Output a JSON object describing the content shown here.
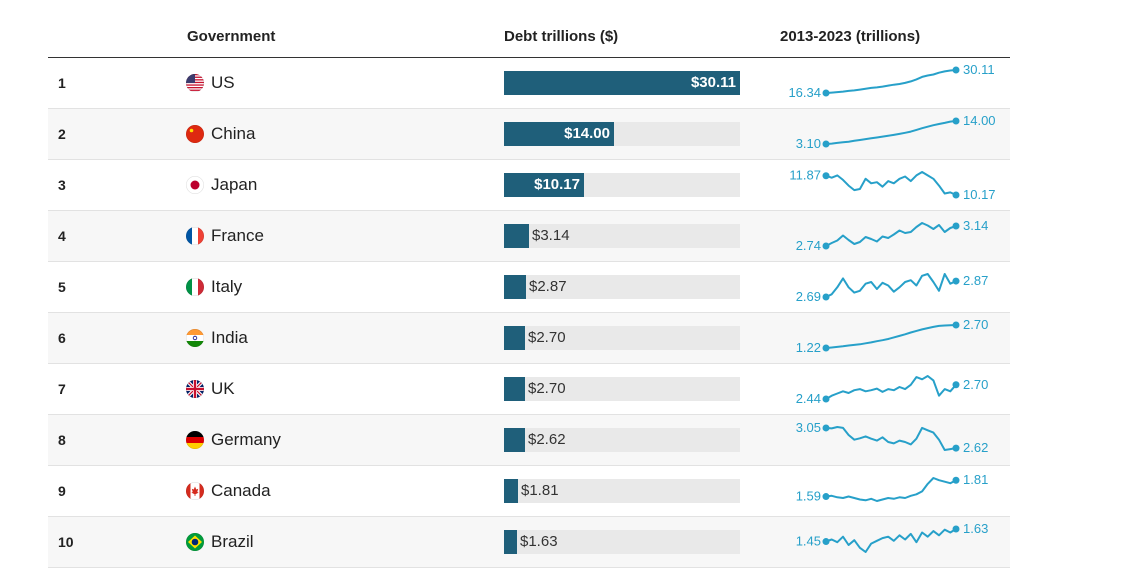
{
  "header": {
    "rank_label": "",
    "government_label": "Government",
    "debt_label": "Debt trillions ($)",
    "trend_label": "2013-2023 (trillions)"
  },
  "colors": {
    "bar": "#1f5f7a",
    "track": "#e9e9e9",
    "spark": "#27a0c9"
  },
  "chart_data": {
    "type": "table",
    "max_value": 30.11,
    "columns": [
      "",
      "Government",
      "Debt trillions ($)",
      "2013-2023 (trillions)"
    ],
    "rows": [
      {
        "rank": "1",
        "country": "US",
        "flag": "us-flag-icon",
        "value": 30.11,
        "label": "$30.11",
        "start_label": "16.34",
        "end_label": "30.11",
        "trend": [
          16.34,
          16.6,
          16.9,
          17.2,
          17.6,
          17.9,
          18.4,
          18.9,
          19.4,
          19.7,
          20.2,
          20.8,
          21.3,
          21.7,
          22.4,
          23.3,
          24.5,
          26.0,
          26.8,
          27.4,
          28.5,
          29.3,
          29.8,
          30.11
        ]
      },
      {
        "rank": "2",
        "country": "China",
        "flag": "china-flag-icon",
        "value": 14.0,
        "label": "$14.00",
        "start_label": "3.10",
        "end_label": "14.00",
        "trend": [
          3.1,
          3.3,
          3.6,
          3.9,
          4.2,
          4.6,
          5.0,
          5.4,
          5.8,
          6.2,
          6.6,
          7.0,
          7.4,
          7.9,
          8.4,
          9.0,
          9.8,
          10.6,
          11.3,
          12.0,
          12.6,
          13.1,
          13.7,
          14.0
        ]
      },
      {
        "rank": "3",
        "country": "Japan",
        "flag": "japan-flag-icon",
        "value": 10.17,
        "label": "$10.17",
        "start_label": "11.87",
        "end_label": "10.17",
        "trend": [
          11.87,
          11.7,
          11.9,
          11.5,
          11.0,
          10.6,
          10.7,
          11.6,
          11.2,
          11.3,
          10.9,
          11.4,
          11.2,
          11.6,
          11.8,
          11.4,
          11.9,
          12.2,
          11.9,
          11.6,
          11.0,
          10.3,
          10.4,
          10.17
        ]
      },
      {
        "rank": "4",
        "country": "France",
        "flag": "france-flag-icon",
        "value": 3.14,
        "label": "$3.14",
        "start_label": "2.74",
        "end_label": "3.14",
        "trend": [
          2.74,
          2.8,
          2.85,
          2.95,
          2.86,
          2.78,
          2.82,
          2.92,
          2.88,
          2.83,
          2.93,
          2.9,
          2.97,
          3.05,
          3.0,
          3.02,
          3.12,
          3.2,
          3.15,
          3.08,
          3.16,
          3.02,
          3.1,
          3.14
        ]
      },
      {
        "rank": "5",
        "country": "Italy",
        "flag": "italy-flag-icon",
        "value": 2.87,
        "label": "$2.87",
        "start_label": "2.69",
        "end_label": "2.87",
        "trend": [
          2.69,
          2.72,
          2.8,
          2.9,
          2.8,
          2.74,
          2.76,
          2.84,
          2.86,
          2.78,
          2.85,
          2.82,
          2.75,
          2.8,
          2.86,
          2.88,
          2.82,
          2.93,
          2.95,
          2.86,
          2.76,
          2.95,
          2.84,
          2.87
        ]
      },
      {
        "rank": "6",
        "country": "India",
        "flag": "india-flag-icon",
        "value": 2.7,
        "label": "$2.70",
        "start_label": "1.22",
        "end_label": "2.70",
        "trend": [
          1.22,
          1.25,
          1.29,
          1.33,
          1.38,
          1.42,
          1.46,
          1.52,
          1.58,
          1.66,
          1.72,
          1.8,
          1.9,
          2.0,
          2.1,
          2.22,
          2.32,
          2.42,
          2.5,
          2.58,
          2.64,
          2.67,
          2.69,
          2.7
        ]
      },
      {
        "rank": "7",
        "country": "UK",
        "flag": "uk-flag-icon",
        "value": 2.7,
        "label": "$2.70",
        "start_label": "2.44",
        "end_label": "2.70",
        "trend": [
          2.44,
          2.5,
          2.54,
          2.58,
          2.55,
          2.6,
          2.62,
          2.58,
          2.6,
          2.63,
          2.57,
          2.62,
          2.6,
          2.66,
          2.62,
          2.7,
          2.84,
          2.8,
          2.86,
          2.78,
          2.5,
          2.62,
          2.58,
          2.7
        ]
      },
      {
        "rank": "8",
        "country": "Germany",
        "flag": "germany-flag-icon",
        "value": 2.62,
        "label": "$2.62",
        "start_label": "3.05",
        "end_label": "2.62",
        "trend": [
          3.05,
          3.04,
          3.07,
          3.05,
          2.9,
          2.8,
          2.83,
          2.87,
          2.82,
          2.78,
          2.85,
          2.75,
          2.72,
          2.78,
          2.75,
          2.7,
          2.82,
          3.05,
          3.0,
          2.95,
          2.8,
          2.58,
          2.6,
          2.62
        ]
      },
      {
        "rank": "9",
        "country": "Canada",
        "flag": "canada-flag-icon",
        "value": 1.81,
        "label": "$1.81",
        "start_label": "1.59",
        "end_label": "1.81",
        "trend": [
          1.59,
          1.6,
          1.58,
          1.57,
          1.59,
          1.57,
          1.55,
          1.54,
          1.56,
          1.53,
          1.55,
          1.57,
          1.56,
          1.58,
          1.57,
          1.6,
          1.62,
          1.66,
          1.76,
          1.84,
          1.81,
          1.79,
          1.77,
          1.81
        ]
      },
      {
        "rank": "10",
        "country": "Brazil",
        "flag": "brazil-flag-icon",
        "value": 1.63,
        "label": "$1.63",
        "start_label": "1.45",
        "end_label": "1.63",
        "trend": [
          1.45,
          1.48,
          1.44,
          1.52,
          1.4,
          1.47,
          1.36,
          1.3,
          1.42,
          1.46,
          1.5,
          1.52,
          1.46,
          1.54,
          1.48,
          1.56,
          1.44,
          1.58,
          1.52,
          1.6,
          1.54,
          1.62,
          1.58,
          1.63
        ]
      }
    ]
  }
}
